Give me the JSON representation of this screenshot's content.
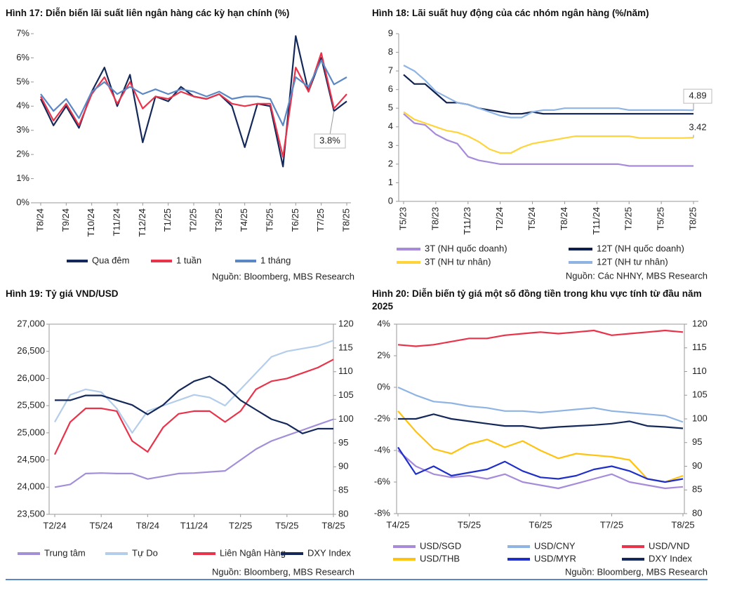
{
  "chart_data": [
    {
      "type": "line",
      "title": "Hình 17: Diễn biến lãi suất liên ngân hàng các kỳ hạn chính (%)",
      "categories": [
        "T8/24",
        null,
        "T9/24",
        null,
        "T10/24",
        null,
        "T11/24",
        null,
        "T12/24",
        null,
        "T1/25",
        null,
        "T2/25",
        null,
        "T3/25",
        null,
        "T4/25",
        null,
        "T5/25",
        null,
        "T6/25",
        null,
        "T7/25",
        null,
        "T8/25"
      ],
      "ylim": [
        0,
        7
      ],
      "yticks": [
        {
          "value": 0,
          "label": "0%"
        },
        {
          "value": 1,
          "label": "1%"
        },
        {
          "value": 2,
          "label": "2%"
        },
        {
          "value": 3,
          "label": "3%"
        },
        {
          "value": 4,
          "label": "4%"
        },
        {
          "value": 5,
          "label": "5%"
        },
        {
          "value": 6,
          "label": "6%"
        },
        {
          "value": 7,
          "label": "7%"
        }
      ],
      "series": [
        {
          "name": "Qua đêm",
          "color": "#14285a",
          "values": [
            4.3,
            3.2,
            4.0,
            3.1,
            4.6,
            5.6,
            4.0,
            5.3,
            2.5,
            4.4,
            4.2,
            4.8,
            4.4,
            4.3,
            4.5,
            4.0,
            2.3,
            4.1,
            4.0,
            1.5,
            6.9,
            4.6,
            6.0,
            3.8,
            4.2
          ]
        },
        {
          "name": "1 tuần",
          "color": "#e8334a",
          "values": [
            4.4,
            3.4,
            4.1,
            3.2,
            4.5,
            5.2,
            4.1,
            5.0,
            3.9,
            4.4,
            4.3,
            4.6,
            4.4,
            4.3,
            4.5,
            4.1,
            4.0,
            4.1,
            4.1,
            1.9,
            5.6,
            4.6,
            6.2,
            3.9,
            4.5
          ]
        },
        {
          "name": "1 tháng",
          "color": "#5b87c5",
          "values": [
            4.5,
            3.8,
            4.3,
            3.5,
            4.6,
            5.0,
            4.5,
            4.8,
            4.5,
            4.7,
            4.5,
            4.7,
            4.6,
            4.4,
            4.6,
            4.3,
            4.4,
            4.4,
            4.3,
            3.2,
            5.2,
            4.8,
            5.9,
            4.9,
            5.2
          ]
        }
      ],
      "annotations": [
        "3.8%"
      ],
      "source": "Nguồn: Bloomberg, MBS Research"
    },
    {
      "type": "line",
      "title": "Hình 18: Lãi suất huy động của các nhóm ngân hàng (%/năm)",
      "categories": [
        "T5/23",
        null,
        null,
        "T8/23",
        null,
        null,
        "T11/23",
        null,
        null,
        "T2/24",
        null,
        null,
        "T5/24",
        null,
        null,
        "T8/24",
        null,
        null,
        "T11/24",
        null,
        null,
        "T2/25",
        null,
        null,
        "T5/25",
        null,
        null,
        "T8/25"
      ],
      "ylim": [
        0,
        9
      ],
      "yticks": [
        0,
        1,
        2,
        3,
        4,
        5,
        6,
        7,
        8,
        9
      ],
      "series": [
        {
          "name": "3T (NH quốc doanh)",
          "color": "#a78bdb",
          "values": [
            4.7,
            4.2,
            4.1,
            3.6,
            3.3,
            3.1,
            2.4,
            2.2,
            2.1,
            2.0,
            2.0,
            2.0,
            2.0,
            2.0,
            2.0,
            2.0,
            2.0,
            2.0,
            2.0,
            2.0,
            2.0,
            1.9,
            1.9,
            1.9,
            1.9,
            1.9,
            1.9,
            1.9
          ]
        },
        {
          "name": "12T (NH quốc doanh)",
          "color": "#0f1f4d",
          "values": [
            6.8,
            6.3,
            6.3,
            5.8,
            5.3,
            5.3,
            5.2,
            5.0,
            4.9,
            4.8,
            4.7,
            4.7,
            4.8,
            4.7,
            4.7,
            4.7,
            4.7,
            4.7,
            4.7,
            4.7,
            4.7,
            4.7,
            4.7,
            4.7,
            4.7,
            4.7,
            4.7,
            4.7
          ]
        },
        {
          "name": "3T (NH tư nhân)",
          "color": "#ffd43b",
          "values": [
            4.8,
            4.4,
            4.2,
            4.0,
            3.8,
            3.7,
            3.5,
            3.2,
            2.8,
            2.6,
            2.6,
            2.9,
            3.1,
            3.2,
            3.3,
            3.4,
            3.5,
            3.5,
            3.5,
            3.5,
            3.5,
            3.5,
            3.4,
            3.4,
            3.4,
            3.4,
            3.4,
            3.42
          ]
        },
        {
          "name": "12T (NH tư nhân)",
          "color": "#8fb4e3",
          "values": [
            7.3,
            7.0,
            6.5,
            5.9,
            5.6,
            5.3,
            5.2,
            5.0,
            4.8,
            4.6,
            4.5,
            4.5,
            4.8,
            4.9,
            4.9,
            5.0,
            5.0,
            5.0,
            5.0,
            5.0,
            5.0,
            4.9,
            4.9,
            4.9,
            4.9,
            4.9,
            4.9,
            4.89
          ]
        }
      ],
      "annotations": [
        "4.89",
        "3.42"
      ],
      "source": "Nguồn: Các NHNY, MBS Research"
    },
    {
      "type": "line",
      "title": "Hình 19: Tỷ giá VND/USD",
      "categories": [
        "T2/24",
        null,
        null,
        "T5/24",
        null,
        null,
        "T8/24",
        null,
        null,
        "T11/24",
        null,
        null,
        "T2/25",
        null,
        null,
        "T5/25",
        null,
        null,
        "T8/25"
      ],
      "ylim": [
        23500,
        27000
      ],
      "yticks": [
        {
          "value": 23500,
          "label": "23,500"
        },
        {
          "value": 24000,
          "label": "24,000"
        },
        {
          "value": 24500,
          "label": "24,500"
        },
        {
          "value": 25000,
          "label": "25,000"
        },
        {
          "value": 25500,
          "label": "25,500"
        },
        {
          "value": 26000,
          "label": "26,000"
        },
        {
          "value": 26500,
          "label": "26,500"
        },
        {
          "value": 27000,
          "label": "27,000"
        }
      ],
      "y2lim": [
        80,
        120
      ],
      "y2ticks": [
        80,
        85,
        90,
        95,
        100,
        105,
        110,
        115,
        120
      ],
      "series": [
        {
          "name": "Trung tâm",
          "color": "#a38fd8",
          "values": [
            24000,
            24050,
            24250,
            24260,
            24250,
            24250,
            24150,
            24200,
            24250,
            24260,
            24280,
            24300,
            24500,
            24700,
            24850,
            24950,
            25050,
            25150,
            25250
          ]
        },
        {
          "name": "Tự Do",
          "color": "#b4cdeb",
          "values": [
            25200,
            25700,
            25800,
            25750,
            25450,
            25000,
            25400,
            25500,
            25600,
            25700,
            25650,
            25500,
            25800,
            26100,
            26400,
            26500,
            26550,
            26600,
            26700
          ]
        },
        {
          "name": "Liên Ngân Hàng",
          "color": "#e8334a",
          "values": [
            24600,
            25200,
            25450,
            25450,
            25400,
            24850,
            24650,
            25100,
            25350,
            25400,
            25400,
            25200,
            25400,
            25800,
            25950,
            26000,
            26100,
            26200,
            26350
          ]
        },
        {
          "name": "DXY Index",
          "color": "#14285a",
          "axis": "y2",
          "values": [
            104,
            104,
            105,
            105,
            104,
            103,
            101,
            103,
            106,
            108,
            109,
            107,
            104,
            102,
            100,
            99,
            97,
            98,
            98
          ]
        }
      ],
      "source": "Nguồn: Bloomberg, MBS Research"
    },
    {
      "type": "line",
      "title": "Hình 20: Diễn biến tỷ giá một số đồng tiền trong khu vực tính từ đầu năm 2025",
      "categories": [
        "T4/25",
        null,
        null,
        null,
        "T5/25",
        null,
        null,
        null,
        "T6/25",
        null,
        null,
        null,
        "T7/25",
        null,
        null,
        null,
        "T8/25"
      ],
      "ylim": [
        -8,
        4
      ],
      "yticks": [
        {
          "value": -8,
          "label": "-8%"
        },
        {
          "value": -6,
          "label": "-6%"
        },
        {
          "value": -4,
          "label": "-4%"
        },
        {
          "value": -2,
          "label": "-2%"
        },
        {
          "value": 0,
          "label": "0%"
        },
        {
          "value": 2,
          "label": "2%"
        },
        {
          "value": 4,
          "label": "4%"
        }
      ],
      "y2lim": [
        80,
        120
      ],
      "y2ticks": [
        80,
        85,
        90,
        95,
        100,
        105,
        110,
        115,
        120
      ],
      "series": [
        {
          "name": "USD/SGD",
          "color": "#a78bdb",
          "values": [
            -4,
            -5,
            -5.5,
            -5.7,
            -5.6,
            -5.8,
            -5.5,
            -6,
            -6.2,
            -6.4,
            -6.1,
            -5.8,
            -5.5,
            -6,
            -6.2,
            -6.4,
            -6.3
          ]
        },
        {
          "name": "USD/CNY",
          "color": "#8fb4e3",
          "values": [
            0,
            -0.5,
            -0.9,
            -1,
            -1.2,
            -1.3,
            -1.5,
            -1.5,
            -1.6,
            -1.5,
            -1.4,
            -1.3,
            -1.5,
            -1.6,
            -1.7,
            -1.8,
            -2.2
          ]
        },
        {
          "name": "USD/VND",
          "color": "#e8334a",
          "values": [
            2.7,
            2.6,
            2.7,
            2.9,
            3.1,
            3.1,
            3.3,
            3.4,
            3.5,
            3.4,
            3.5,
            3.6,
            3.3,
            3.4,
            3.5,
            3.6,
            3.5
          ]
        },
        {
          "name": "USD/THB",
          "color": "#ffc20e",
          "values": [
            -1.5,
            -2.8,
            -3.9,
            -4.2,
            -3.6,
            -3.3,
            -3.8,
            -3.4,
            -4,
            -4.5,
            -4.2,
            -4.3,
            -4.4,
            -4.6,
            -5.8,
            -6,
            -5.6
          ]
        },
        {
          "name": "USD/MYR",
          "color": "#1f2fc8",
          "values": [
            -3.8,
            -5.5,
            -5,
            -5.6,
            -5.4,
            -5.2,
            -4.7,
            -5.3,
            -5.7,
            -5.8,
            -5.6,
            -5.2,
            -5,
            -5.3,
            -5.8,
            -6,
            -5.8
          ]
        },
        {
          "name": "DXY Index",
          "color": "#14285a",
          "axis": "y2",
          "values": [
            100,
            100,
            101,
            100,
            99.5,
            99,
            98.5,
            98.5,
            98,
            98.3,
            98.5,
            98.7,
            99,
            99.5,
            98.5,
            98.3,
            98
          ]
        }
      ],
      "source": "Nguồn: Bloomberg, MBS Research"
    }
  ]
}
